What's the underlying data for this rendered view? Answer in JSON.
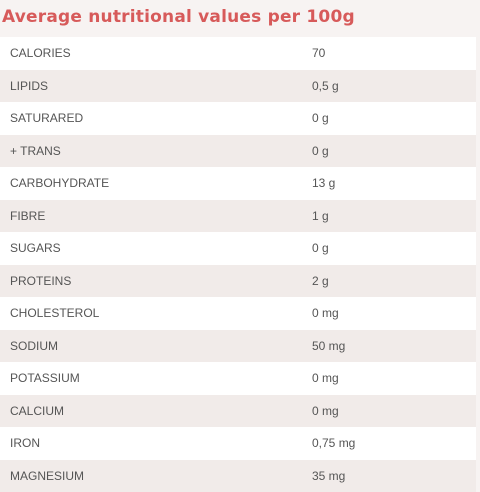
{
  "title": "Average nutritional values per 100g",
  "rows": [
    {
      "label": "CALORIES",
      "value": "70"
    },
    {
      "label": "LIPIDS",
      "value": "0,5 g"
    },
    {
      "label": "SATURARED",
      "value": "0 g"
    },
    {
      "label": "+ TRANS",
      "value": "0 g"
    },
    {
      "label": "CARBOHYDRATE",
      "value": "13 g"
    },
    {
      "label": "FIBRE",
      "value": "1 g"
    },
    {
      "label": "SUGARS",
      "value": "0 g"
    },
    {
      "label": "PROTEINS",
      "value": "2 g"
    },
    {
      "label": "CHOLESTEROL",
      "value": "0 mg"
    },
    {
      "label": "SODIUM",
      "value": "50 mg"
    },
    {
      "label": "POTASSIUM",
      "value": "0 mg"
    },
    {
      "label": "CALCIUM",
      "value": "0 mg"
    },
    {
      "label": "IRON",
      "value": "0,75 mg"
    },
    {
      "label": "MAGNESIUM",
      "value": "35 mg"
    }
  ],
  "colors": {
    "title": "#d75a5a",
    "row_odd": "#ffffff",
    "row_even": "#f1ebe9",
    "text": "#555555"
  }
}
